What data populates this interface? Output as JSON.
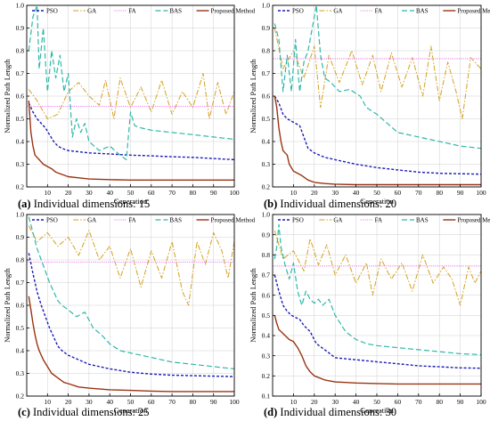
{
  "chart_data": [
    {
      "type": "line",
      "caption_letter": "(a)",
      "caption_rest": " Individual dimensions: 15",
      "xlabel": "Generation",
      "ylabel": "Normalized Path Length",
      "xlim": [
        0,
        100
      ],
      "ylim": [
        0.2,
        1.0
      ],
      "xticks": [
        10,
        20,
        30,
        40,
        50,
        60,
        70,
        80,
        90,
        100
      ],
      "yticks": [
        0.2,
        0.3,
        0.4,
        0.5,
        0.6,
        0.7,
        0.8,
        0.9,
        1.0
      ],
      "legend": [
        "PSO",
        "GA",
        "FA",
        "BAS",
        "Proposed Method"
      ],
      "series": [
        {
          "name": "PSO",
          "x": [
            1,
            3,
            5,
            7,
            9,
            11,
            13,
            15,
            17,
            20,
            25,
            30,
            40,
            50,
            60,
            70,
            80,
            90,
            100
          ],
          "y": [
            0.57,
            0.53,
            0.5,
            0.48,
            0.46,
            0.43,
            0.4,
            0.38,
            0.37,
            0.36,
            0.355,
            0.35,
            0.345,
            0.34,
            0.337,
            0.333,
            0.33,
            0.325,
            0.32
          ]
        },
        {
          "name": "GA",
          "x": [
            1,
            5,
            10,
            15,
            20,
            25,
            30,
            35,
            38,
            42,
            45,
            50,
            55,
            60,
            65,
            70,
            75,
            80,
            85,
            88,
            92,
            96,
            100
          ],
          "y": [
            0.63,
            0.58,
            0.5,
            0.52,
            0.62,
            0.66,
            0.6,
            0.56,
            0.67,
            0.5,
            0.68,
            0.55,
            0.64,
            0.53,
            0.67,
            0.52,
            0.62,
            0.55,
            0.7,
            0.5,
            0.66,
            0.52,
            0.62
          ]
        },
        {
          "name": "FA",
          "x": [
            0,
            100
          ],
          "y": [
            0.555,
            0.555
          ]
        },
        {
          "name": "BAS",
          "x": [
            1,
            3,
            5,
            6,
            8,
            10,
            12,
            14,
            16,
            18,
            20,
            22,
            24,
            26,
            28,
            30,
            35,
            40,
            45,
            48,
            50,
            52,
            55,
            60,
            70,
            80,
            90,
            100
          ],
          "y": [
            0.8,
            0.95,
            1.0,
            0.72,
            0.9,
            0.62,
            0.8,
            0.68,
            0.78,
            0.62,
            0.7,
            0.42,
            0.5,
            0.44,
            0.48,
            0.4,
            0.36,
            0.38,
            0.34,
            0.32,
            0.53,
            0.47,
            0.46,
            0.45,
            0.44,
            0.43,
            0.42,
            0.41
          ]
        },
        {
          "name": "Proposed Method",
          "x": [
            1,
            2,
            3,
            4,
            5,
            6,
            8,
            10,
            12,
            14,
            17,
            20,
            25,
            30,
            40,
            50,
            60,
            70,
            80,
            90,
            100
          ],
          "y": [
            0.58,
            0.44,
            0.38,
            0.34,
            0.33,
            0.32,
            0.3,
            0.29,
            0.28,
            0.265,
            0.255,
            0.245,
            0.24,
            0.235,
            0.232,
            0.23,
            0.23,
            0.23,
            0.23,
            0.23,
            0.23
          ]
        }
      ]
    },
    {
      "type": "line",
      "caption_letter": "(b)",
      "caption_rest": " Individual dimensions: 20",
      "xlabel": "Generation",
      "ylabel": "Normalized Path Length",
      "xlim": [
        0,
        100
      ],
      "ylim": [
        0.2,
        1.0
      ],
      "xticks": [
        10,
        20,
        30,
        40,
        50,
        60,
        70,
        80,
        90,
        100
      ],
      "yticks": [
        0.2,
        0.3,
        0.4,
        0.5,
        0.6,
        0.7,
        0.8,
        0.9,
        1.0
      ],
      "legend": [
        "PSO",
        "GA",
        "FA",
        "BAS",
        "Proposed Method"
      ],
      "series": [
        {
          "name": "PSO",
          "x": [
            1,
            3,
            5,
            7,
            9,
            11,
            13,
            15,
            17,
            20,
            25,
            30,
            40,
            50,
            60,
            70,
            80,
            90,
            100
          ],
          "y": [
            0.6,
            0.57,
            0.52,
            0.5,
            0.49,
            0.48,
            0.47,
            0.42,
            0.37,
            0.35,
            0.33,
            0.32,
            0.3,
            0.285,
            0.275,
            0.265,
            0.26,
            0.258,
            0.256
          ]
        },
        {
          "name": "GA",
          "x": [
            1,
            5,
            10,
            15,
            20,
            23,
            27,
            32,
            38,
            43,
            48,
            52,
            57,
            62,
            67,
            72,
            76,
            80,
            84,
            88,
            91,
            95,
            100
          ],
          "y": [
            0.9,
            0.72,
            0.8,
            0.68,
            0.82,
            0.55,
            0.78,
            0.66,
            0.8,
            0.65,
            0.78,
            0.62,
            0.79,
            0.64,
            0.77,
            0.6,
            0.82,
            0.58,
            0.75,
            0.62,
            0.5,
            0.77,
            0.72
          ]
        },
        {
          "name": "FA",
          "x": [
            0,
            100
          ],
          "y": [
            0.765,
            0.765
          ]
        },
        {
          "name": "BAS",
          "x": [
            1,
            3,
            5,
            7,
            9,
            11,
            13,
            15,
            17,
            19,
            21,
            23,
            25,
            28,
            32,
            37,
            42,
            45,
            50,
            55,
            60,
            70,
            80,
            90,
            100
          ],
          "y": [
            0.92,
            0.85,
            0.62,
            0.78,
            0.62,
            0.85,
            0.62,
            0.75,
            0.8,
            0.9,
            1.0,
            0.78,
            0.68,
            0.66,
            0.62,
            0.63,
            0.6,
            0.55,
            0.52,
            0.48,
            0.44,
            0.42,
            0.4,
            0.38,
            0.37
          ]
        },
        {
          "name": "Proposed Method",
          "x": [
            1,
            2,
            3,
            4,
            5,
            6,
            7,
            8,
            10,
            12,
            14,
            17,
            20,
            25,
            30,
            40,
            50,
            60,
            70,
            80,
            90,
            100
          ],
          "y": [
            0.6,
            0.55,
            0.46,
            0.4,
            0.36,
            0.35,
            0.34,
            0.3,
            0.27,
            0.26,
            0.25,
            0.23,
            0.22,
            0.215,
            0.212,
            0.21,
            0.21,
            0.21,
            0.21,
            0.21,
            0.21,
            0.21
          ]
        }
      ]
    },
    {
      "type": "line",
      "caption_letter": "(c)",
      "caption_rest": " Individual dimensions: 25",
      "xlabel": "Generation",
      "ylabel": "Normalized Path Length",
      "xlim": [
        0,
        100
      ],
      "ylim": [
        0.2,
        1.0
      ],
      "xticks": [
        10,
        20,
        30,
        40,
        50,
        60,
        70,
        80,
        90,
        100
      ],
      "yticks": [
        0.2,
        0.3,
        0.4,
        0.5,
        0.6,
        0.7,
        0.8,
        0.9,
        1.0
      ],
      "legend": [
        "PSO",
        "GA",
        "FA",
        "BAS",
        "Proposed Method"
      ],
      "series": [
        {
          "name": "PSO",
          "x": [
            1,
            3,
            5,
            7,
            9,
            11,
            13,
            15,
            17,
            20,
            25,
            30,
            40,
            50,
            60,
            70,
            80,
            90,
            100
          ],
          "y": [
            0.83,
            0.74,
            0.66,
            0.6,
            0.55,
            0.5,
            0.46,
            0.42,
            0.4,
            0.38,
            0.36,
            0.34,
            0.32,
            0.305,
            0.297,
            0.292,
            0.29,
            0.288,
            0.286
          ]
        },
        {
          "name": "GA",
          "x": [
            1,
            5,
            10,
            15,
            20,
            25,
            30,
            35,
            40,
            45,
            50,
            55,
            60,
            65,
            70,
            75,
            78,
            82,
            86,
            90,
            94,
            97,
            100
          ],
          "y": [
            0.95,
            0.88,
            0.92,
            0.86,
            0.9,
            0.82,
            0.93,
            0.8,
            0.86,
            0.72,
            0.85,
            0.68,
            0.84,
            0.72,
            0.88,
            0.66,
            0.6,
            0.88,
            0.78,
            0.92,
            0.84,
            0.72,
            0.88
          ]
        },
        {
          "name": "FA",
          "x": [
            0,
            100
          ],
          "y": [
            0.79,
            0.79
          ]
        },
        {
          "name": "BAS",
          "x": [
            1,
            3,
            5,
            7,
            9,
            11,
            13,
            15,
            17,
            20,
            24,
            28,
            32,
            36,
            40,
            45,
            50,
            60,
            70,
            80,
            90,
            100
          ],
          "y": [
            0.99,
            0.92,
            0.85,
            0.8,
            0.75,
            0.7,
            0.66,
            0.62,
            0.6,
            0.58,
            0.55,
            0.57,
            0.5,
            0.47,
            0.43,
            0.4,
            0.39,
            0.37,
            0.35,
            0.34,
            0.33,
            0.32
          ]
        },
        {
          "name": "Proposed Method",
          "x": [
            1,
            2,
            3,
            4,
            5,
            6,
            8,
            10,
            12,
            15,
            18,
            20,
            25,
            30,
            40,
            50,
            60,
            70,
            80,
            90,
            100
          ],
          "y": [
            0.64,
            0.58,
            0.52,
            0.47,
            0.43,
            0.4,
            0.36,
            0.33,
            0.3,
            0.28,
            0.26,
            0.255,
            0.24,
            0.235,
            0.228,
            0.225,
            0.222,
            0.22,
            0.22,
            0.22,
            0.22
          ]
        }
      ]
    },
    {
      "type": "line",
      "caption_letter": "(d)",
      "caption_rest": " Individual dimensions: 30",
      "xlabel": "Generation",
      "ylabel": "Normalized Path Length",
      "xlim": [
        0,
        100
      ],
      "ylim": [
        0.1,
        1.0
      ],
      "xticks": [
        10,
        20,
        30,
        40,
        50,
        60,
        70,
        80,
        90,
        100
      ],
      "yticks": [
        0.1,
        0.2,
        0.3,
        0.4,
        0.5,
        0.6,
        0.7,
        0.8,
        0.9,
        1.0
      ],
      "legend": [
        "PSO",
        "GA",
        "FA",
        "BAS",
        "Proposed Method"
      ],
      "series": [
        {
          "name": "PSO",
          "x": [
            1,
            3,
            5,
            7,
            9,
            11,
            13,
            15,
            18,
            21,
            25,
            30,
            35,
            40,
            50,
            60,
            70,
            80,
            90,
            100
          ],
          "y": [
            0.7,
            0.62,
            0.55,
            0.52,
            0.5,
            0.49,
            0.48,
            0.45,
            0.42,
            0.36,
            0.33,
            0.29,
            0.285,
            0.28,
            0.27,
            0.26,
            0.25,
            0.245,
            0.24,
            0.238
          ]
        },
        {
          "name": "GA",
          "x": [
            1,
            5,
            10,
            15,
            18,
            22,
            26,
            30,
            35,
            40,
            45,
            48,
            52,
            57,
            62,
            67,
            72,
            77,
            82,
            86,
            90,
            94,
            97,
            100
          ],
          "y": [
            0.92,
            0.78,
            0.82,
            0.72,
            0.88,
            0.75,
            0.85,
            0.7,
            0.8,
            0.66,
            0.76,
            0.6,
            0.78,
            0.68,
            0.76,
            0.62,
            0.8,
            0.66,
            0.74,
            0.68,
            0.55,
            0.74,
            0.66,
            0.72
          ]
        },
        {
          "name": "FA",
          "x": [
            0,
            100
          ],
          "y": [
            0.745,
            0.745
          ]
        },
        {
          "name": "BAS",
          "x": [
            1,
            2,
            3,
            4,
            6,
            8,
            10,
            12,
            14,
            16,
            18,
            20,
            22,
            24,
            27,
            30,
            35,
            40,
            45,
            50,
            60,
            70,
            80,
            90,
            100
          ],
          "y": [
            0.78,
            0.84,
            0.95,
            0.84,
            0.75,
            0.68,
            0.76,
            0.62,
            0.55,
            0.62,
            0.58,
            0.56,
            0.58,
            0.55,
            0.58,
            0.5,
            0.42,
            0.38,
            0.36,
            0.35,
            0.34,
            0.33,
            0.32,
            0.31,
            0.305
          ]
        },
        {
          "name": "Proposed Method",
          "x": [
            1,
            2,
            3,
            4,
            5,
            6,
            8,
            10,
            12,
            14,
            16,
            18,
            20,
            25,
            30,
            40,
            50,
            60,
            70,
            80,
            90,
            100
          ],
          "y": [
            0.5,
            0.46,
            0.43,
            0.42,
            0.41,
            0.4,
            0.38,
            0.37,
            0.34,
            0.3,
            0.25,
            0.22,
            0.2,
            0.18,
            0.17,
            0.165,
            0.162,
            0.16,
            0.16,
            0.16,
            0.16,
            0.16
          ]
        }
      ]
    }
  ],
  "colors": {
    "PSO": "#1c1cb8",
    "GA": "#d4a020",
    "FA": "#ee80ee",
    "BAS": "#2fb8a8",
    "Proposed Method": "#9a3412",
    "grid": "#cfcfcf",
    "axis": "#000000"
  }
}
